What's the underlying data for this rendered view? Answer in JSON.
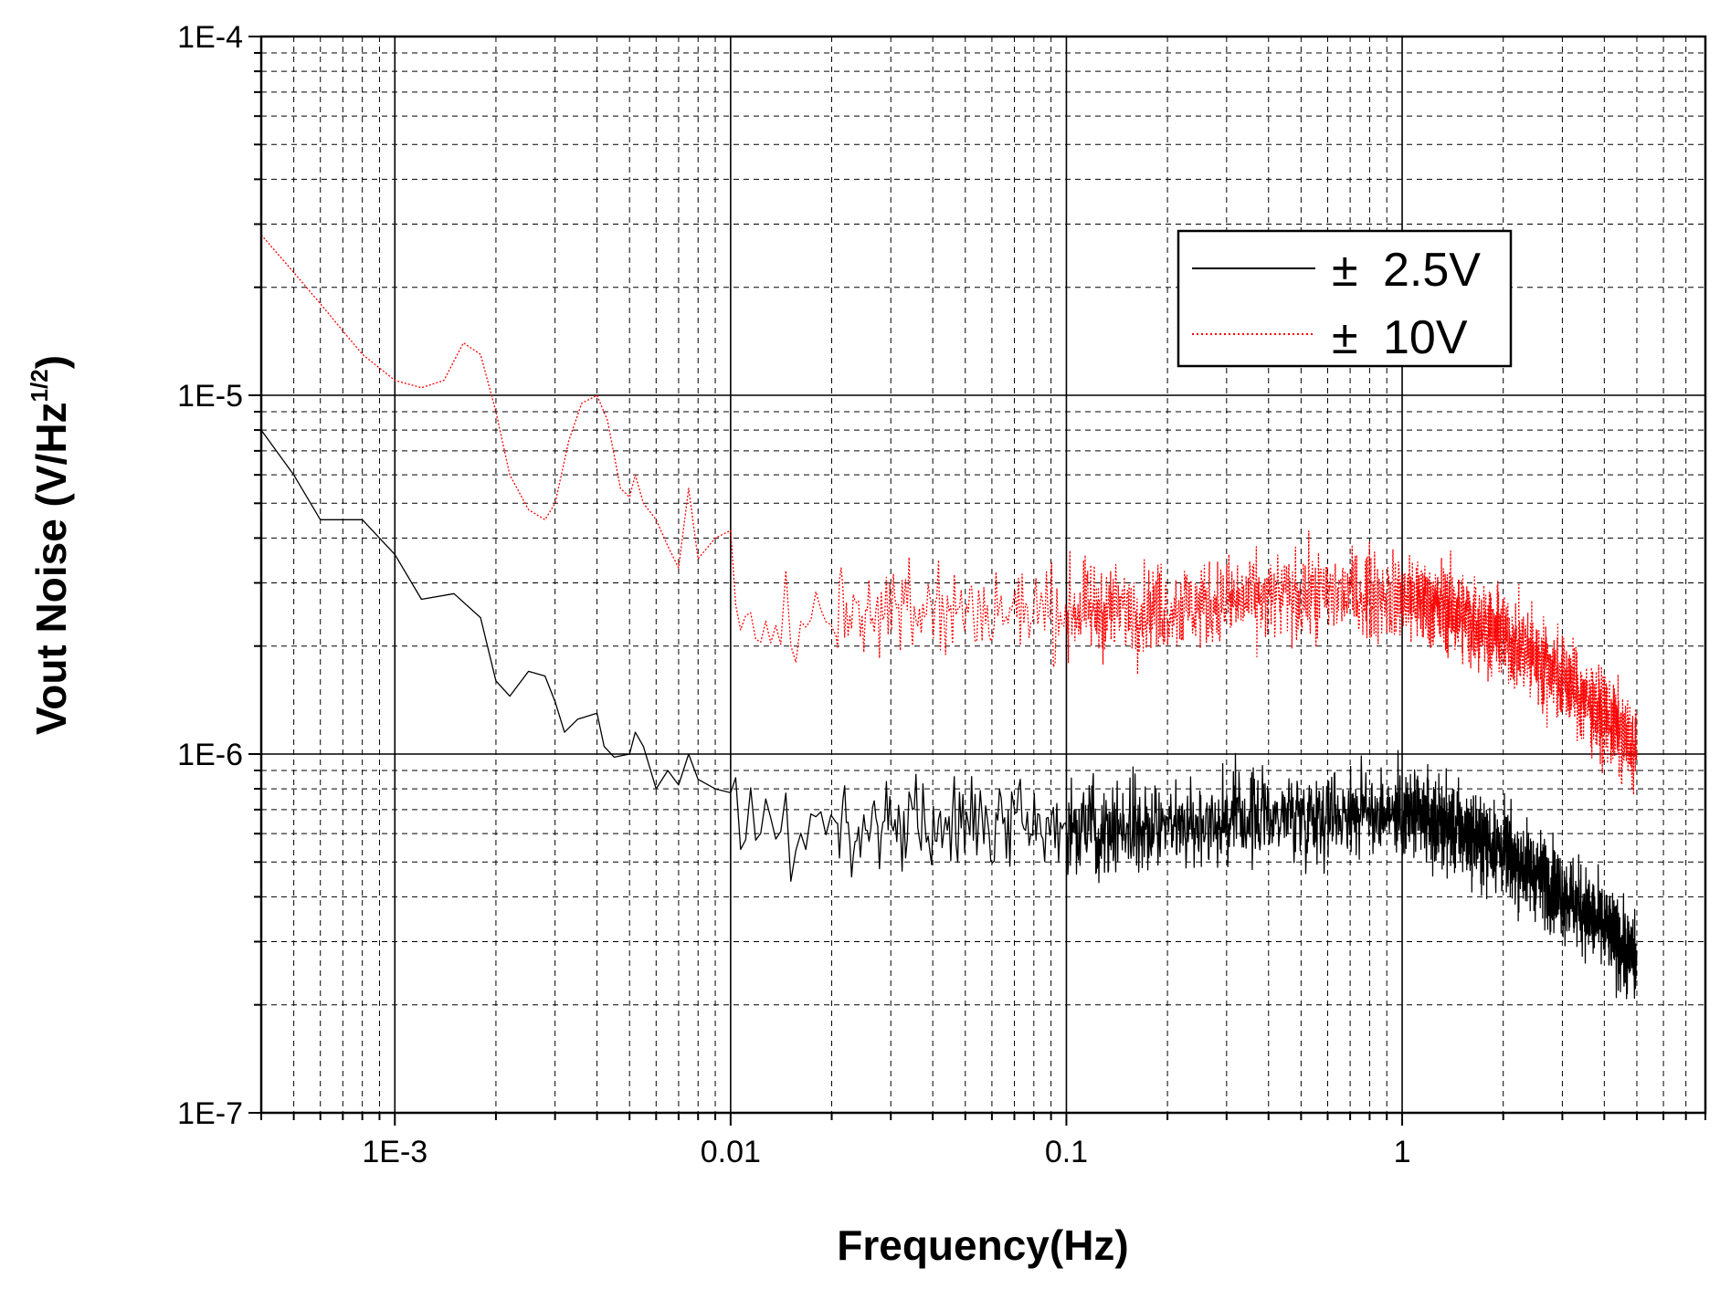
{
  "chart_data": {
    "type": "line",
    "xscale": "log",
    "yscale": "log",
    "xlabel": "Frequency(Hz)",
    "ylabel_main": "Vout Noise (V/Hz",
    "ylabel_sup": "1/2",
    "ylabel_close": ")",
    "xlim": [
      0.0004,
      8
    ],
    "ylim": [
      1e-07,
      0.0001
    ],
    "grid": true,
    "legend_position": "top-right",
    "x_ticks": [
      {
        "value": 0.001,
        "label": "1E-3"
      },
      {
        "value": 0.01,
        "label": "0.01"
      },
      {
        "value": 0.1,
        "label": "0.1"
      },
      {
        "value": 1,
        "label": "1"
      }
    ],
    "y_ticks": [
      {
        "value": 0.0001,
        "label": "1E-4"
      },
      {
        "value": 1e-05,
        "label": "1E-5"
      },
      {
        "value": 1e-06,
        "label": "1E-6"
      },
      {
        "value": 1e-07,
        "label": "1E-7"
      }
    ],
    "series": [
      {
        "name": "± 2.5V",
        "legend_prefix": "±",
        "legend_value": "2.5V",
        "color": "#000000",
        "style": "solid",
        "x_start": 0.0004,
        "x_end": 5,
        "low_freq_points": [
          [
            0.0004,
            8e-06
          ],
          [
            0.0005,
            6e-06
          ],
          [
            0.0006,
            4.5e-06
          ],
          [
            0.0008,
            4.5e-06
          ],
          [
            0.001,
            3.6e-06
          ],
          [
            0.0012,
            2.7e-06
          ],
          [
            0.0015,
            2.8e-06
          ],
          [
            0.0018,
            2.4e-06
          ],
          [
            0.002,
            1.6e-06
          ],
          [
            0.0022,
            1.45e-06
          ],
          [
            0.0025,
            1.7e-06
          ],
          [
            0.0028,
            1.65e-06
          ],
          [
            0.003,
            1.4e-06
          ],
          [
            0.0032,
            1.15e-06
          ],
          [
            0.0035,
            1.25e-06
          ],
          [
            0.004,
            1.3e-06
          ],
          [
            0.0042,
            1.05e-06
          ],
          [
            0.0045,
            9.8e-07
          ],
          [
            0.005,
            1e-06
          ],
          [
            0.0052,
            1.15e-06
          ],
          [
            0.0055,
            1.05e-06
          ],
          [
            0.006,
            8e-07
          ],
          [
            0.0065,
            9e-07
          ],
          [
            0.007,
            8.2e-07
          ],
          [
            0.0075,
            1e-06
          ],
          [
            0.008,
            8.5e-07
          ],
          [
            0.009,
            8e-07
          ],
          [
            0.01,
            7.8e-07
          ]
        ],
        "noise_floor": 6.2e-07,
        "noise_spread": 1.35,
        "rolloff_corner_hz": 1.8,
        "end_value": 2.6e-07
      },
      {
        "name": "± 10V",
        "legend_prefix": "±",
        "legend_value": "10V",
        "color": "#ff0000",
        "style": "dotted",
        "x_start": 0.0004,
        "x_end": 5,
        "low_freq_points": [
          [
            0.0004,
            2.8e-05
          ],
          [
            0.0005,
            2.2e-05
          ],
          [
            0.0006,
            1.8e-05
          ],
          [
            0.0008,
            1.3e-05
          ],
          [
            0.001,
            1.1e-05
          ],
          [
            0.0012,
            1.05e-05
          ],
          [
            0.0014,
            1.1e-05
          ],
          [
            0.0016,
            1.4e-05
          ],
          [
            0.0018,
            1.3e-05
          ],
          [
            0.002,
            9e-06
          ],
          [
            0.0022,
            6e-06
          ],
          [
            0.0025,
            4.8e-06
          ],
          [
            0.0028,
            4.5e-06
          ],
          [
            0.003,
            5e-06
          ],
          [
            0.0033,
            7.5e-06
          ],
          [
            0.0036,
            9.5e-06
          ],
          [
            0.004,
            1e-05
          ],
          [
            0.0043,
            8.5e-06
          ],
          [
            0.0047,
            5.5e-06
          ],
          [
            0.005,
            5.2e-06
          ],
          [
            0.0052,
            6e-06
          ],
          [
            0.0055,
            5e-06
          ],
          [
            0.006,
            4.5e-06
          ],
          [
            0.0065,
            3.8e-06
          ],
          [
            0.007,
            3.3e-06
          ],
          [
            0.0075,
            5.5e-06
          ],
          [
            0.008,
            3.5e-06
          ],
          [
            0.009,
            4e-06
          ],
          [
            0.01,
            4.2e-06
          ]
        ],
        "noise_floor": 2.5e-06,
        "noise_spread": 1.35,
        "rolloff_corner_hz": 1.8,
        "end_value": 1e-06
      }
    ]
  }
}
